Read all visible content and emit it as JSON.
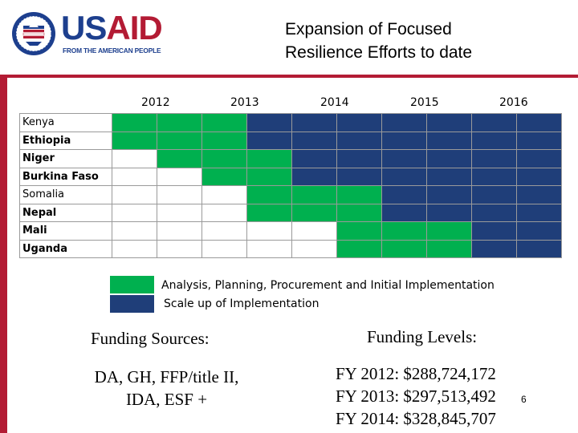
{
  "logo": {
    "word_us": "US",
    "word_aid": "AID",
    "tagline": "FROM THE AMERICAN PEOPLE",
    "colors": {
      "blue": "#1d3f8e",
      "red": "#b31b34"
    }
  },
  "title": {
    "line1": "Expansion of Focused",
    "line2": "Resilience Efforts to date"
  },
  "timeline": {
    "years": [
      "2012",
      "2013",
      "2014",
      "2015",
      "2016"
    ],
    "rows": [
      {
        "country": "Kenya",
        "bold": false,
        "cells": [
          "g",
          "g",
          "g",
          "b",
          "b",
          "b",
          "b",
          "b",
          "b",
          "b"
        ]
      },
      {
        "country": "Ethiopia",
        "bold": true,
        "cells": [
          "g",
          "g",
          "g",
          "b",
          "b",
          "b",
          "b",
          "b",
          "b",
          "b"
        ]
      },
      {
        "country": "Niger",
        "bold": true,
        "cells": [
          "w",
          "g",
          "g",
          "g",
          "b",
          "b",
          "b",
          "b",
          "b",
          "b"
        ]
      },
      {
        "country": "Burkina Faso",
        "bold": true,
        "cells": [
          "w",
          "w",
          "g",
          "g",
          "b",
          "b",
          "b",
          "b",
          "b",
          "b"
        ]
      },
      {
        "country": "Somalia",
        "bold": false,
        "cells": [
          "w",
          "w",
          "w",
          "g",
          "g",
          "g",
          "b",
          "b",
          "b",
          "b"
        ]
      },
      {
        "country": "Nepal",
        "bold": true,
        "cells": [
          "w",
          "w",
          "w",
          "g",
          "g",
          "g",
          "b",
          "b",
          "b",
          "b"
        ]
      },
      {
        "country": "Mali",
        "bold": true,
        "cells": [
          "w",
          "w",
          "w",
          "w",
          "w",
          "g",
          "g",
          "g",
          "b",
          "b"
        ]
      },
      {
        "country": "Uganda",
        "bold": true,
        "cells": [
          "w",
          "w",
          "w",
          "w",
          "w",
          "g",
          "g",
          "g",
          "b",
          "b"
        ]
      }
    ],
    "colors": {
      "g": "#00b04f",
      "b": "#1f3e79",
      "w": "#ffffff"
    }
  },
  "legend": {
    "green_label": "Analysis, Planning, Procurement and Initial Implementation",
    "blue_label": "Scale up of Implementation"
  },
  "funding_sources": {
    "heading": "Funding Sources:",
    "line1": "DA, GH, FFP/title II,",
    "line2": "IDA, ESF +"
  },
  "funding_levels": {
    "heading": "Funding Levels:",
    "items": [
      "FY 2012:  $288,724,172",
      "FY 2013:  $297,513,492",
      "FY 2014:  $328,845,707"
    ]
  },
  "page_number": "6"
}
